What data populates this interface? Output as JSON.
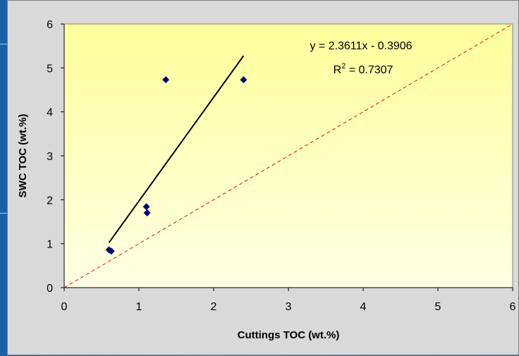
{
  "chart_data": {
    "type": "scatter",
    "xlabel": "Cuttings TOC (wt.%)",
    "ylabel": "SWC TOC (wt.%)",
    "xlim": [
      0,
      6
    ],
    "ylim": [
      0,
      6
    ],
    "x_ticks": [
      "0",
      "1",
      "2",
      "3",
      "4",
      "5",
      "6"
    ],
    "y_ticks": [
      "0",
      "1",
      "2",
      "3",
      "4",
      "5",
      "6"
    ],
    "grid": false,
    "points": [
      {
        "x": 0.6,
        "y": 0.86
      },
      {
        "x": 0.63,
        "y": 0.83
      },
      {
        "x": 1.1,
        "y": 1.84
      },
      {
        "x": 1.11,
        "y": 1.7
      },
      {
        "x": 1.36,
        "y": 4.73
      },
      {
        "x": 2.4,
        "y": 4.73
      }
    ],
    "trendline": {
      "slope": 2.3611,
      "intercept": -0.3906,
      "x_range": [
        0.6,
        2.4
      ]
    },
    "reference_line": {
      "label": "",
      "slope": 1,
      "intercept": 0,
      "x_range": [
        0,
        6
      ]
    },
    "annotations": {
      "equation": "y = 2.3611x - 0.3906",
      "r2_prefix": "R",
      "r2_sup": "2",
      "r2_suffix": " = 0.7307"
    },
    "colors": {
      "marker": "#000080",
      "trendline": "#000000",
      "reference_line": "#ff0000",
      "plot_bg_top": "#fffe9a",
      "plot_bg_bottom": "#ffffe6",
      "chart_bg": "#d9d9d9"
    }
  }
}
